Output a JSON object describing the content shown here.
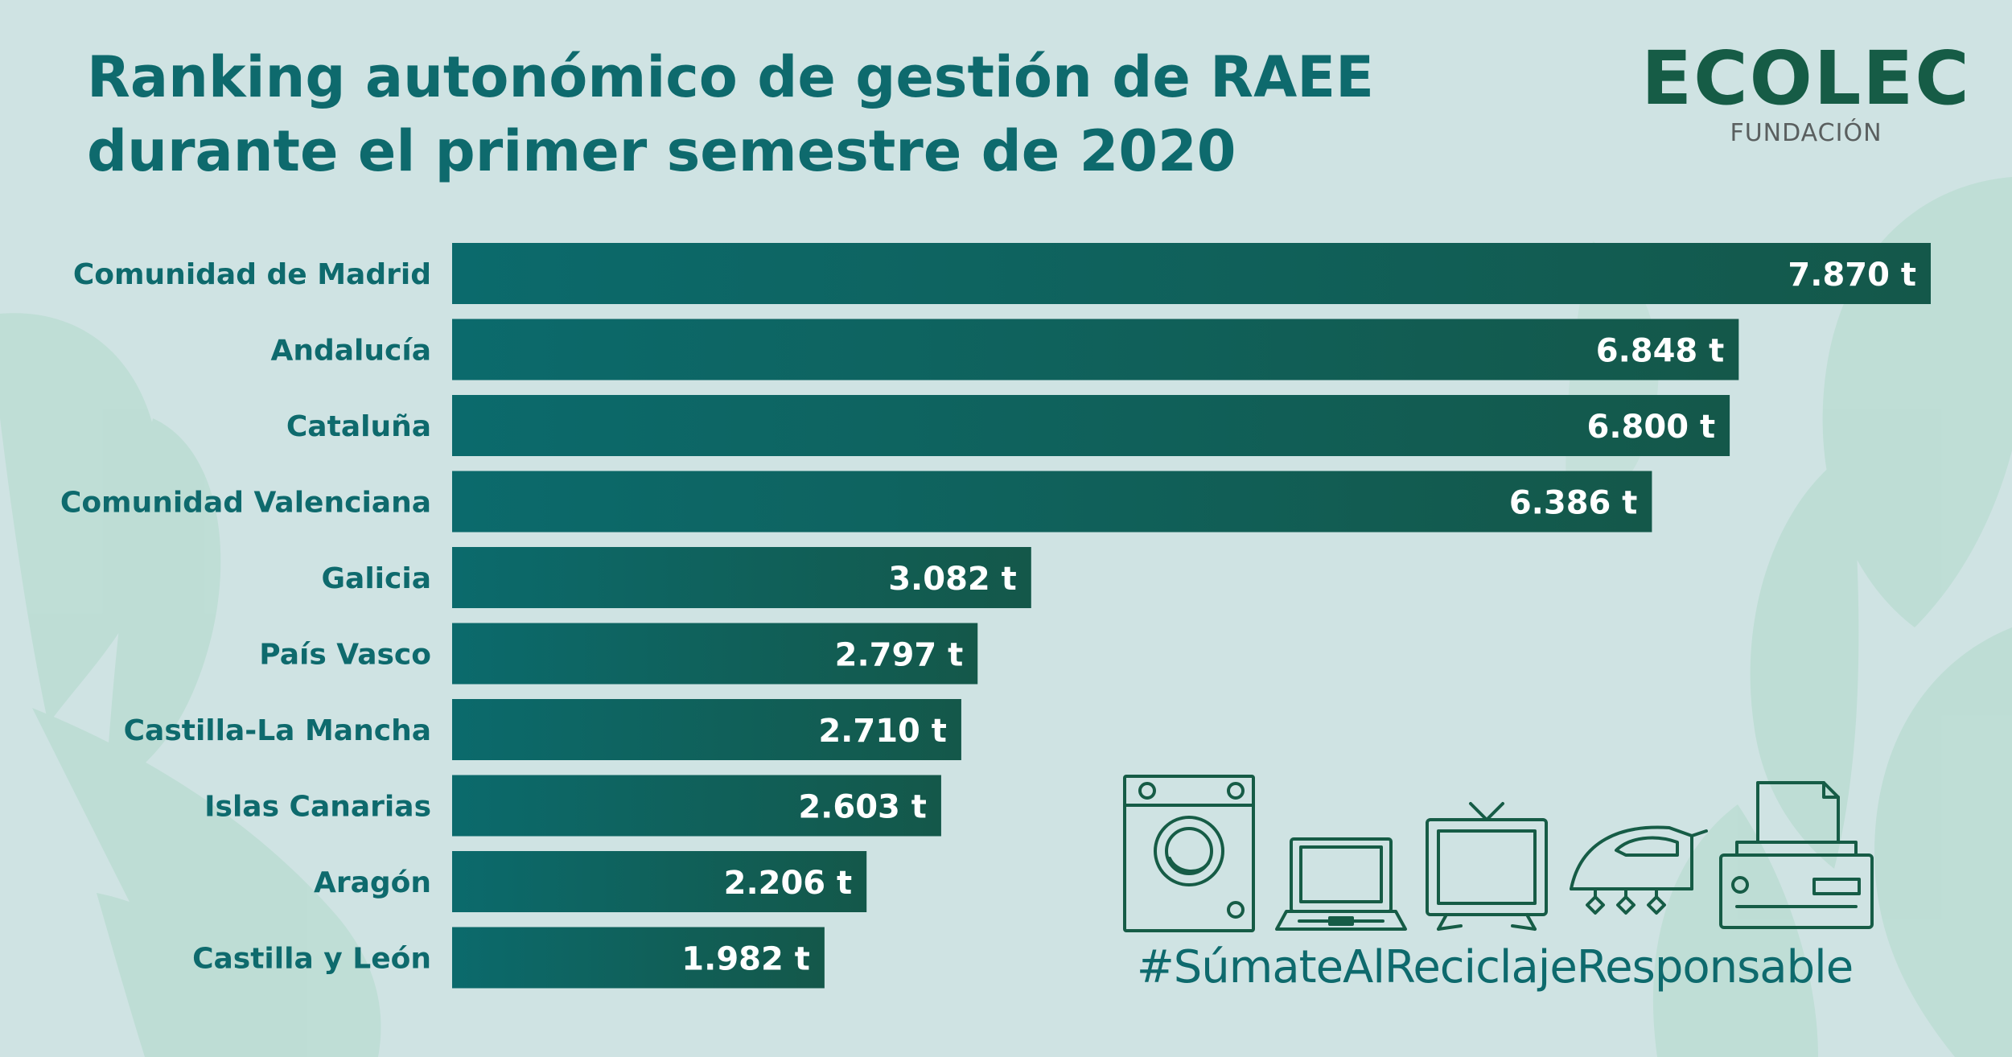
{
  "title": {
    "line1": "Ranking autonómico de gestión de RAEE",
    "line2": "durante el primer semestre de 2020"
  },
  "logo": {
    "name": "ECOLEC",
    "subtitle": "FUNDACIÓN"
  },
  "hashtag": "#SúmateAlReciclajeResponsable",
  "colors": {
    "background": "#cfe3e3",
    "bar_start": "#0b6a6c",
    "bar_end": "#14584a",
    "title": "#0e6a6d",
    "label": "#0e6a6d",
    "value_text": "#ffffff",
    "leaf": "#b3d8cc",
    "icon_stroke": "#165c46"
  },
  "icons": [
    "washing-machine-icon",
    "laptop-icon",
    "television-icon",
    "iron-icon",
    "printer-icon"
  ],
  "chart_data": {
    "type": "bar",
    "orientation": "horizontal",
    "title": "Ranking autonómico de gestión de RAEE durante el primer semestre de 2020",
    "categories": [
      "Comunidad de Madrid",
      "Andalucía",
      "Cataluña",
      "Comunidad Valenciana",
      "Galicia",
      "País Vasco",
      "Castilla-La Mancha",
      "Islas Canarias",
      "Aragón",
      "Castilla y León"
    ],
    "values": [
      7870,
      6848,
      6800,
      6386,
      3082,
      2797,
      2710,
      2603,
      2206,
      1982
    ],
    "value_labels": [
      "7.870 t",
      "6.848 t",
      "6.800 t",
      "6.386 t",
      "3.082 t",
      "2.797 t",
      "2.710 t",
      "2.603 t",
      "2.206 t",
      "1.982 t"
    ],
    "unit": "t",
    "xlim": [
      0,
      7870
    ],
    "grid": false,
    "legend": false
  }
}
